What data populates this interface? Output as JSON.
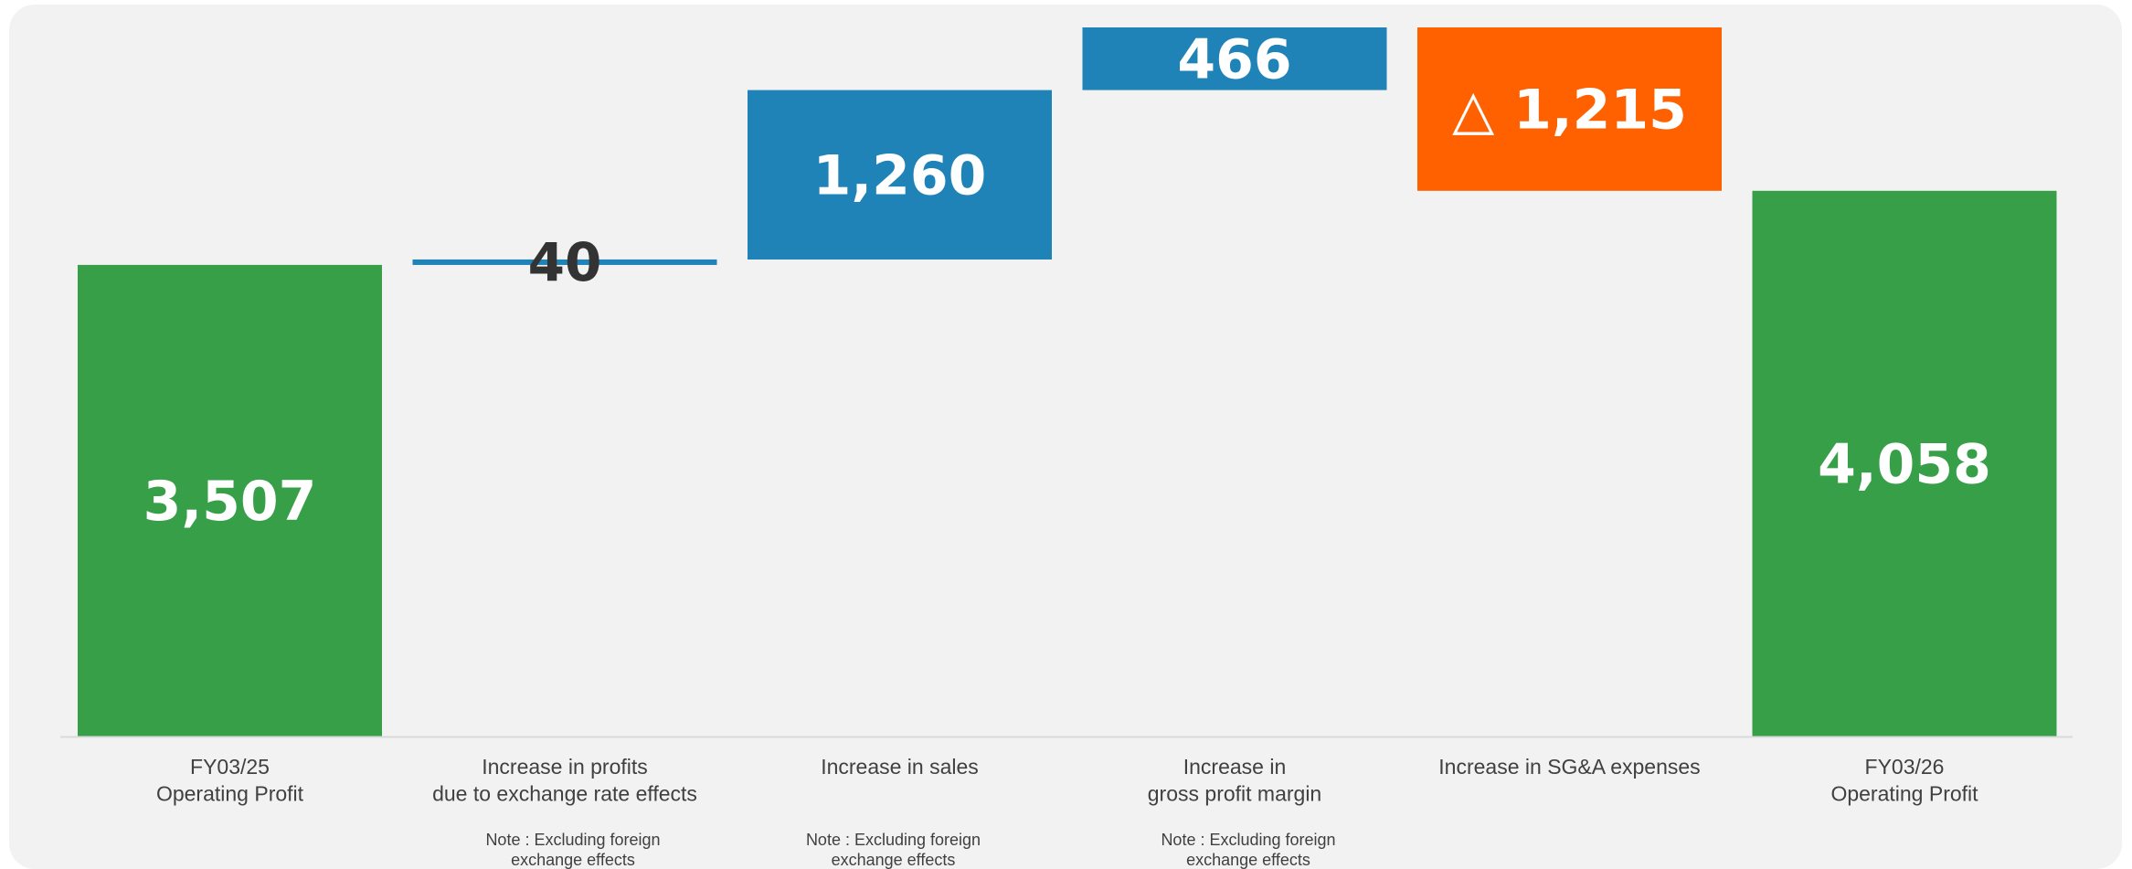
{
  "chart_data": {
    "type": "bar",
    "subtype": "waterfall",
    "categories": [
      "FY03/25\nOperating Profit",
      "Increase in profits\ndue to exchange rate effects",
      "Increase in sales",
      "Increase in\ngross profit margin",
      "Increase in SG&A expenses",
      "FY03/26\nOperating Profit"
    ],
    "values": [
      3507,
      40,
      1260,
      466,
      -1215,
      4058
    ],
    "kinds": [
      "total",
      "increase",
      "increase",
      "increase",
      "decrease",
      "total"
    ],
    "value_labels": [
      "3,507",
      "40",
      "1,260",
      "466",
      "△ 1,215",
      "4,058"
    ],
    "notes": [
      "",
      "Note : Excluding foreign\nexchange effects",
      "Note : Excluding foreign\nexchange effects",
      "Note : Excluding foreign\nexchange effects",
      "",
      ""
    ],
    "ylim": [
      0,
      5273
    ],
    "grid": false,
    "legend": "none",
    "title": "",
    "xlabel": "",
    "ylabel": "",
    "colors": {
      "total": "#369f48",
      "increase": "#1f83b8",
      "decrease": "#ff6100",
      "label_light": "#ffffff",
      "label_dark": "#333333",
      "axis": "#d9d9d9",
      "category_text": "#404040"
    }
  }
}
